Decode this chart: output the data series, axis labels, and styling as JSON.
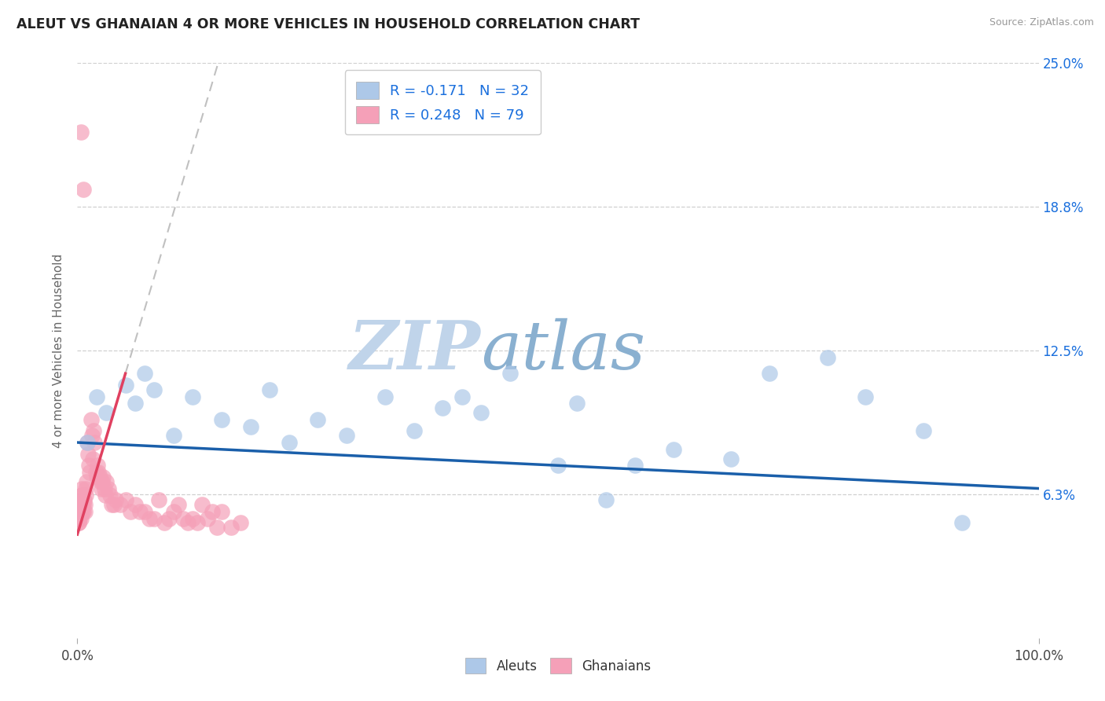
{
  "title": "ALEUT VS GHANAIAN 4 OR MORE VEHICLES IN HOUSEHOLD CORRELATION CHART",
  "source": "Source: ZipAtlas.com",
  "ylabel": "4 or more Vehicles in Household",
  "xlim": [
    0.0,
    100.0
  ],
  "ylim": [
    0.0,
    25.0
  ],
  "ytick_vals": [
    0.0,
    6.25,
    12.5,
    18.75,
    25.0
  ],
  "ytick_labels_right": [
    "",
    "6.3%",
    "12.5%",
    "18.8%",
    "25.0%"
  ],
  "xtick_vals": [
    0,
    100
  ],
  "xtick_labels": [
    "0.0%",
    "100.0%"
  ],
  "legend_r_aleut": "-0.171",
  "legend_n_aleut": "32",
  "legend_r_ghanaian": "0.248",
  "legend_n_ghanaian": "79",
  "aleut_color": "#adc8e8",
  "ghanaian_color": "#f5a0b8",
  "aleut_line_color": "#1a5faa",
  "ghanaian_line_color": "#e04060",
  "ghanaian_trend_dashed_color": "#c0c0c0",
  "watermark_zip": "ZIP",
  "watermark_atlas": "atlas",
  "watermark_color_zip": "#c0d4ea",
  "watermark_color_atlas": "#8ab0d0",
  "background_color": "#ffffff",
  "title_fontsize": 12.5,
  "right_tick_color": "#1a6fdd",
  "legend_text_color": "#1a6fdd",
  "aleut_scatter_x": [
    1.0,
    2.0,
    3.0,
    5.0,
    6.0,
    7.0,
    8.0,
    10.0,
    12.0,
    15.0,
    18.0,
    20.0,
    22.0,
    25.0,
    28.0,
    32.0,
    35.0,
    38.0,
    40.0,
    42.0,
    45.0,
    50.0,
    52.0,
    55.0,
    58.0,
    62.0,
    68.0,
    72.0,
    78.0,
    82.0,
    88.0,
    92.0
  ],
  "aleut_scatter_y": [
    8.5,
    10.5,
    9.8,
    11.0,
    10.2,
    11.5,
    10.8,
    8.8,
    10.5,
    9.5,
    9.2,
    10.8,
    8.5,
    9.5,
    8.8,
    10.5,
    9.0,
    10.0,
    10.5,
    9.8,
    11.5,
    7.5,
    10.2,
    6.0,
    7.5,
    8.2,
    7.8,
    11.5,
    12.2,
    10.5,
    9.0,
    5.0
  ],
  "ghanaian_scatter_x": [
    0.1,
    0.15,
    0.2,
    0.25,
    0.3,
    0.35,
    0.4,
    0.45,
    0.5,
    0.55,
    0.6,
    0.65,
    0.7,
    0.75,
    0.8,
    0.85,
    0.9,
    0.95,
    1.0,
    1.1,
    1.2,
    1.3,
    1.4,
    1.5,
    1.6,
    1.7,
    1.8,
    1.9,
    2.0,
    2.1,
    2.2,
    2.3,
    2.4,
    2.5,
    2.6,
    2.7,
    2.8,
    2.9,
    3.0,
    3.2,
    3.4,
    3.6,
    3.8,
    4.0,
    4.5,
    5.0,
    5.5,
    6.0,
    6.5,
    7.0,
    7.5,
    8.0,
    8.5,
    9.0,
    9.5,
    10.0,
    10.5,
    11.0,
    11.5,
    12.0,
    12.5,
    13.0,
    13.5,
    14.0,
    14.5,
    15.0,
    16.0,
    17.0,
    0.12,
    0.18,
    0.22,
    0.28,
    0.32,
    0.38,
    0.42,
    0.48,
    0.52,
    0.58,
    0.62
  ],
  "ghanaian_scatter_y": [
    5.0,
    5.2,
    5.5,
    5.8,
    5.5,
    6.0,
    22.0,
    6.2,
    5.8,
    5.5,
    19.5,
    5.8,
    6.0,
    5.5,
    5.8,
    6.2,
    6.5,
    6.8,
    8.5,
    8.0,
    7.5,
    7.2,
    9.5,
    8.8,
    7.8,
    9.0,
    8.5,
    7.2,
    7.0,
    7.5,
    7.2,
    7.0,
    6.8,
    6.5,
    6.8,
    7.0,
    6.5,
    6.2,
    6.8,
    6.5,
    6.2,
    5.8,
    5.8,
    6.0,
    5.8,
    6.0,
    5.5,
    5.8,
    5.5,
    5.5,
    5.2,
    5.2,
    6.0,
    5.0,
    5.2,
    5.5,
    5.8,
    5.2,
    5.0,
    5.2,
    5.0,
    5.8,
    5.2,
    5.5,
    4.8,
    5.5,
    4.8,
    5.0,
    5.0,
    5.2,
    5.5,
    5.8,
    5.5,
    5.2,
    6.2,
    6.5,
    5.8,
    6.0,
    5.5
  ]
}
